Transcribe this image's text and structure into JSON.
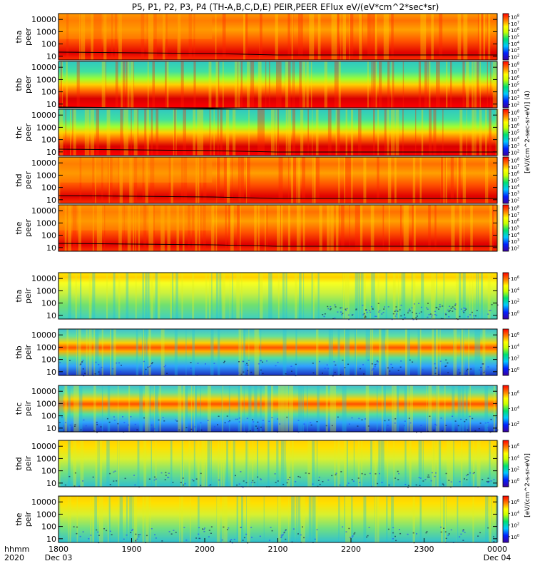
{
  "chart_data": {
    "type": "heatmap",
    "title": "P5, P1, P2, P3, P4 (TH-A,B,C,D,E) PEIR,PEER EFlux eV/(eV*cm^2*sec*sr)",
    "xlabel": "hhmm",
    "x_year": "2020",
    "x_ticks": [
      "1800",
      "1900",
      "2000",
      "2100",
      "2200",
      "2300",
      "0000"
    ],
    "x_date_labels": [
      "Dec 03",
      "Dec 04"
    ],
    "y_ticks": [
      "10",
      "100",
      "1000",
      "10000"
    ],
    "ylim": [
      5,
      30000
    ],
    "y_scale": "log",
    "colorbar_label_electron": "[eV/(cm^2-sec-sr-eV)] (4)",
    "colorbar_label_ion": "[eV/(cm^2-s-sr-eV)]",
    "panels": [
      {
        "probe": "tha",
        "species": "peer",
        "colorbar_ticks": [
          "10^2",
          "10^3",
          "10^4",
          "10^5",
          "10^6",
          "10^7",
          "10^8"
        ]
      },
      {
        "probe": "thb",
        "species": "peer",
        "colorbar_ticks": [
          "10^2",
          "10^3",
          "10^4",
          "10^5",
          "10^6",
          "10^7",
          "10^8"
        ]
      },
      {
        "probe": "thc",
        "species": "peer",
        "colorbar_ticks": [
          "10^2",
          "10^3",
          "10^4",
          "10^5",
          "10^6",
          "10^7",
          "10^8"
        ]
      },
      {
        "probe": "thd",
        "species": "peer",
        "colorbar_ticks": [
          "10^2",
          "10^3",
          "10^4",
          "10^5",
          "10^6",
          "10^7",
          "10^8"
        ]
      },
      {
        "probe": "the",
        "species": "peer",
        "colorbar_ticks": [
          "10^2",
          "10^3",
          "10^4",
          "10^5",
          "10^6",
          "10^7",
          "10^8"
        ]
      },
      {
        "probe": "tha",
        "species": "peir",
        "colorbar_ticks": [
          "10^0",
          "10^2",
          "10^4",
          "10^6"
        ]
      },
      {
        "probe": "thb",
        "species": "peir",
        "colorbar_ticks": [
          "10^0",
          "10^2",
          "10^4",
          "10^6"
        ]
      },
      {
        "probe": "thc",
        "species": "peir",
        "colorbar_ticks": [
          "10^2",
          "10^4",
          "10^6"
        ]
      },
      {
        "probe": "thd",
        "species": "peir",
        "colorbar_ticks": [
          "10^0",
          "10^2",
          "10^4",
          "10^6"
        ]
      },
      {
        "probe": "the",
        "species": "peir",
        "colorbar_ticks": [
          "10^0",
          "10^2",
          "10^4",
          "10^6"
        ]
      }
    ]
  }
}
